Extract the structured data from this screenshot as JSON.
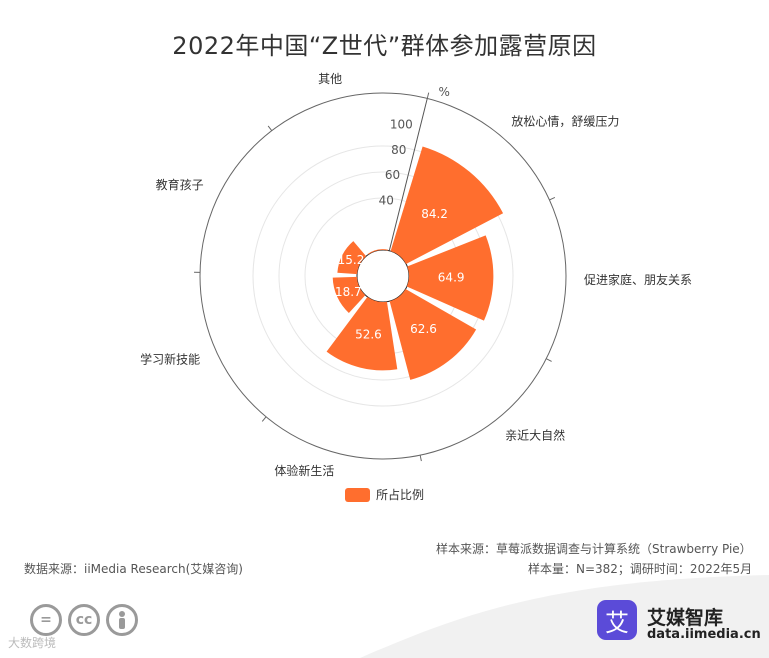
{
  "title": "2022年中国“Z世代”群体参加露营原因",
  "chart_data": {
    "type": "polar-bar",
    "title": "2022年中国“Z世代”群体参加露营原因",
    "categories": [
      "放松心情，舒缓压力",
      "促进家庭、朋友关系",
      "亲近大自然",
      "体验新生活",
      "学习新技能",
      "教育孩子",
      "其他"
    ],
    "values": [
      84.2,
      64.9,
      62.6,
      52.6,
      18.7,
      15.2,
      0.6
    ],
    "series": [
      {
        "name": "所占比例",
        "values": [
          84.2,
          64.9,
          62.6,
          52.6,
          18.7,
          15.2,
          0.6
        ]
      }
    ],
    "radial_ticks": [
      "40",
      "60",
      "80",
      "100"
    ],
    "radial_max": 100,
    "unit": "%",
    "legend": "bottom",
    "color": "#FF6E2E"
  },
  "footer": {
    "sample_source": "样本来源：草莓派数据调查与计算系统（Strawberry Pie）",
    "data_source": "数据来源：iiMedia Research(艾媒咨询)",
    "sample_size": "样本量：N=382；调研时间：2022年5月"
  },
  "brand": {
    "logo_char": "艾",
    "name": "艾媒智库",
    "url": "data.iimedia.cn"
  },
  "license_icons": [
    "=",
    "cc",
    "person"
  ],
  "watermark": "大数跨境"
}
